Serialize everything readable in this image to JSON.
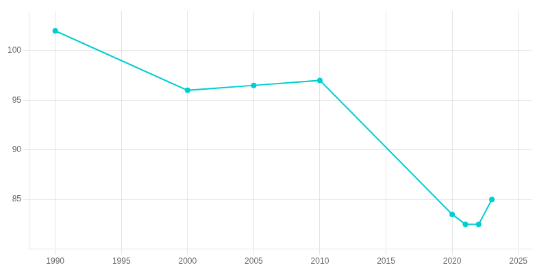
{
  "chart_data": {
    "type": "line",
    "x": [
      1990,
      2000,
      2005,
      2010,
      2020,
      2021,
      2022,
      2023
    ],
    "values": [
      102,
      96,
      96.5,
      97,
      83.5,
      82.5,
      82.5,
      85
    ],
    "color": "#00CED1",
    "marker": "circle",
    "xlim": [
      1988,
      2026
    ],
    "ylim": [
      80,
      104
    ],
    "xticks": [
      1990,
      1995,
      2000,
      2005,
      2010,
      2015,
      2020,
      2025
    ],
    "yticks": [
      85,
      90,
      95,
      100
    ],
    "grid": true
  }
}
